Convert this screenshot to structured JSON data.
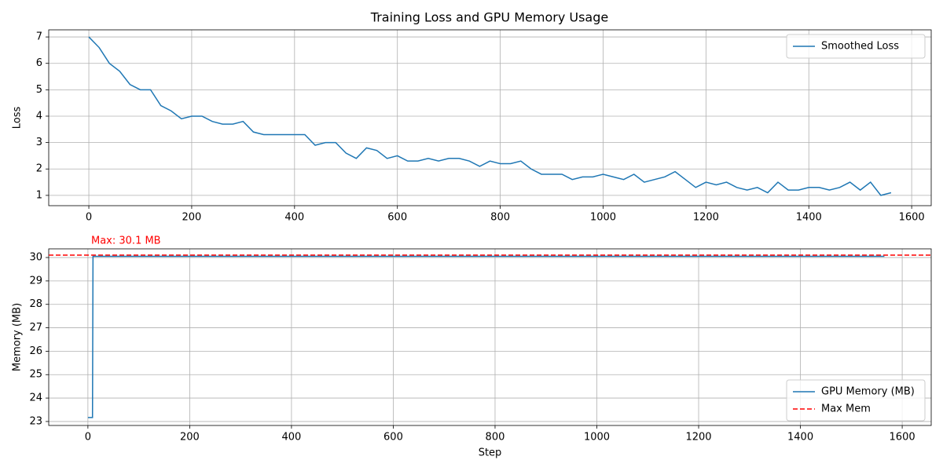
{
  "chart_data": [
    {
      "type": "line",
      "title": "Training Loss and GPU Memory Usage",
      "y_label": "Loss",
      "xlim": [
        -78,
        1638
      ],
      "ylim": [
        0.61,
        7.27
      ],
      "xticks": [
        0,
        200,
        400,
        600,
        800,
        1000,
        1200,
        1400,
        1600
      ],
      "yticks": [
        1,
        2,
        3,
        4,
        5,
        6,
        7
      ],
      "grid": true,
      "legend": "upper right",
      "x": [
        0,
        20,
        40,
        60,
        80,
        100,
        120,
        140,
        160,
        180,
        200,
        220,
        240,
        260,
        280,
        300,
        320,
        340,
        360,
        380,
        400,
        420,
        440,
        460,
        480,
        500,
        520,
        540,
        560,
        580,
        600,
        620,
        640,
        660,
        680,
        700,
        720,
        740,
        760,
        780,
        800,
        820,
        840,
        860,
        880,
        900,
        920,
        940,
        960,
        980,
        1000,
        1020,
        1040,
        1060,
        1080,
        1100,
        1120,
        1140,
        1160,
        1180,
        1200,
        1220,
        1240,
        1260,
        1280,
        1300,
        1320,
        1340,
        1360,
        1380,
        1400,
        1420,
        1440,
        1460,
        1480,
        1500,
        1520,
        1540,
        1560
      ],
      "series": [
        {
          "name": "Smoothed Loss",
          "color": "#1f77b4",
          "values": [
            7.0,
            6.6,
            6.0,
            5.7,
            5.2,
            5.0,
            5.0,
            4.4,
            4.2,
            3.9,
            4.0,
            4.0,
            3.8,
            3.7,
            3.7,
            3.8,
            3.4,
            3.3,
            3.3,
            3.3,
            3.3,
            3.3,
            2.9,
            3.0,
            3.0,
            2.6,
            2.4,
            2.8,
            2.7,
            2.4,
            2.5,
            2.3,
            2.3,
            2.4,
            2.3,
            2.4,
            2.4,
            2.3,
            2.1,
            2.3,
            2.2,
            2.2,
            2.3,
            2.0,
            1.8,
            1.8,
            1.8,
            1.6,
            1.7,
            1.7,
            1.8,
            1.7,
            1.6,
            1.8,
            1.5,
            1.6,
            1.7,
            1.9,
            1.6,
            1.3,
            1.5,
            1.4,
            1.5,
            1.3,
            1.2,
            1.3,
            1.1,
            1.5,
            1.2,
            1.2,
            1.3,
            1.3,
            1.2,
            1.3,
            1.5,
            1.2,
            1.5,
            1.0,
            1.1
          ]
        }
      ]
    },
    {
      "type": "line",
      "x_label": "Step",
      "y_label": "Memory (MB)",
      "annotation": "Max: 30.1 MB",
      "xlim": [
        -77,
        1657
      ],
      "ylim": [
        22.83,
        30.37
      ],
      "xticks": [
        0,
        200,
        400,
        600,
        800,
        1000,
        1200,
        1400,
        1600
      ],
      "yticks": [
        23,
        24,
        25,
        26,
        27,
        28,
        29,
        30
      ],
      "grid": true,
      "legend": "lower right",
      "x": [
        0,
        9,
        10,
        1565
      ],
      "series": [
        {
          "name": "GPU Memory (MB)",
          "color": "#1f77b4",
          "values": [
            23.17,
            23.17,
            30.05,
            30.05
          ]
        }
      ],
      "hlines": [
        {
          "name": "Max Mem",
          "color": "red",
          "value": 30.1,
          "style": "dashed"
        }
      ]
    }
  ]
}
